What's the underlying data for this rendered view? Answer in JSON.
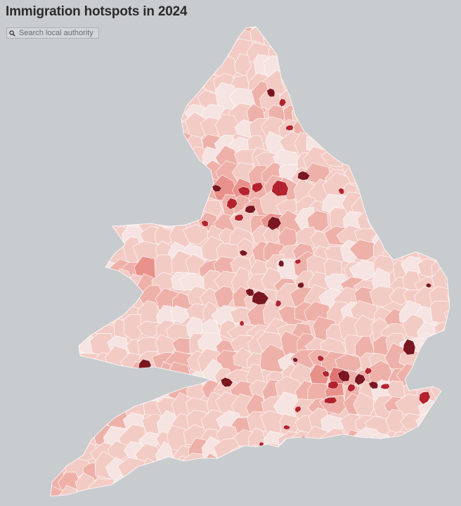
{
  "header": {
    "title": "Immigration hotspots in 2024"
  },
  "search": {
    "placeholder": "Search local authority",
    "icon": "search-icon"
  },
  "colors": {
    "background": "#c9cccf",
    "border": "#ffffff",
    "scale": [
      "#f6e4e2",
      "#f3cbc5",
      "#eeb1a9",
      "#e8918a",
      "#e07471",
      "#d24a4e",
      "#b3232e",
      "#7a1620"
    ]
  }
}
